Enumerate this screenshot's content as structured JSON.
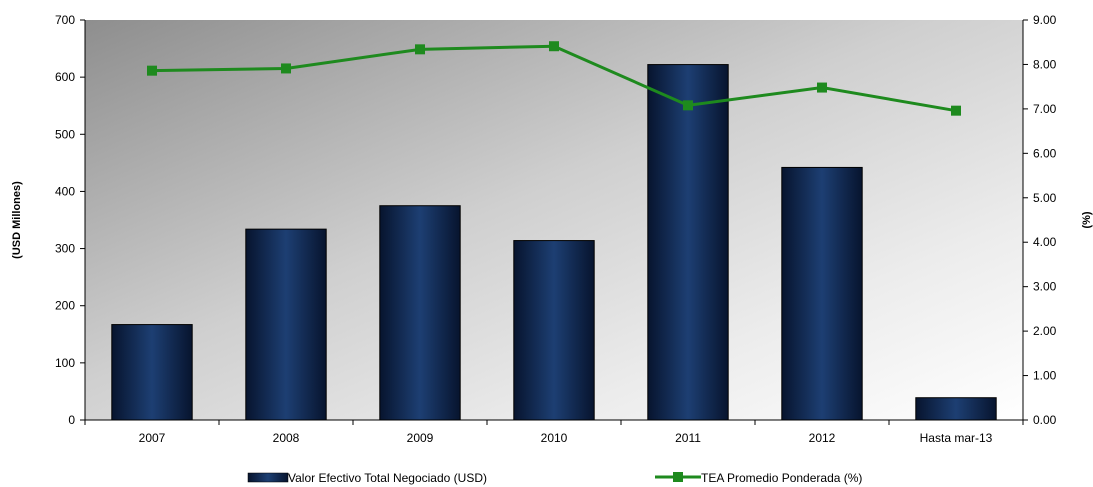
{
  "chart_data": {
    "type": "bar",
    "categories": [
      "2007",
      "2008",
      "2009",
      "2010",
      "2011",
      "2012",
      "Hasta mar-13"
    ],
    "series": [
      {
        "name": "Valor Efectivo Total Negociado (USD)",
        "type": "bar",
        "axis": "left",
        "values": [
          167,
          334,
          375,
          314,
          622,
          442,
          39
        ]
      },
      {
        "name": "TEA Promedio Ponderada (%)",
        "type": "line",
        "axis": "right",
        "values": [
          7.86,
          7.91,
          8.34,
          8.41,
          7.08,
          7.48,
          6.96
        ]
      }
    ],
    "ylabel": "(USD Millones)",
    "y2label": "(%)",
    "ylim": [
      0,
      700
    ],
    "y2lim": [
      0,
      9
    ],
    "yticks": [
      "0",
      "100",
      "200",
      "300",
      "400",
      "500",
      "600",
      "700"
    ],
    "y2ticks": [
      "0.00",
      "1.00",
      "2.00",
      "3.00",
      "4.00",
      "5.00",
      "6.00",
      "7.00",
      "8.00",
      "9.00"
    ],
    "grid": false,
    "legend_position": "bottom",
    "colors": {
      "bar": "#0f2a55",
      "line": "#1e8a1e"
    }
  }
}
